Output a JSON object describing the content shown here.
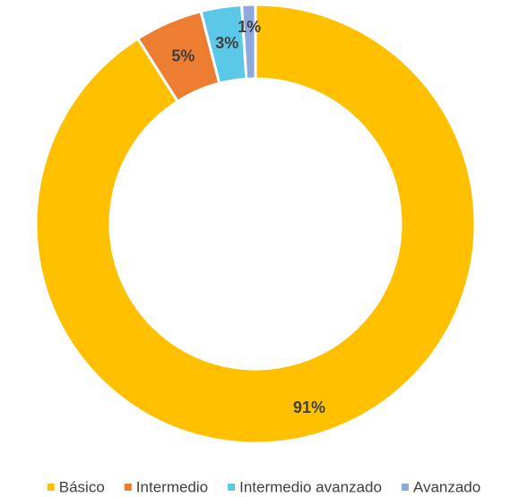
{
  "chart_data": {
    "type": "donut",
    "categories": [
      "Básico",
      "Intermedio",
      "Intermedio avanzado",
      "Avanzado"
    ],
    "values": [
      91,
      5,
      3,
      1
    ],
    "value_labels": [
      "91%",
      "5%",
      "3%",
      "1%"
    ],
    "colors": [
      "#FFC000",
      "#ED7D31",
      "#5BC8E8",
      "#8EA9DB"
    ],
    "legend": "bottom"
  }
}
